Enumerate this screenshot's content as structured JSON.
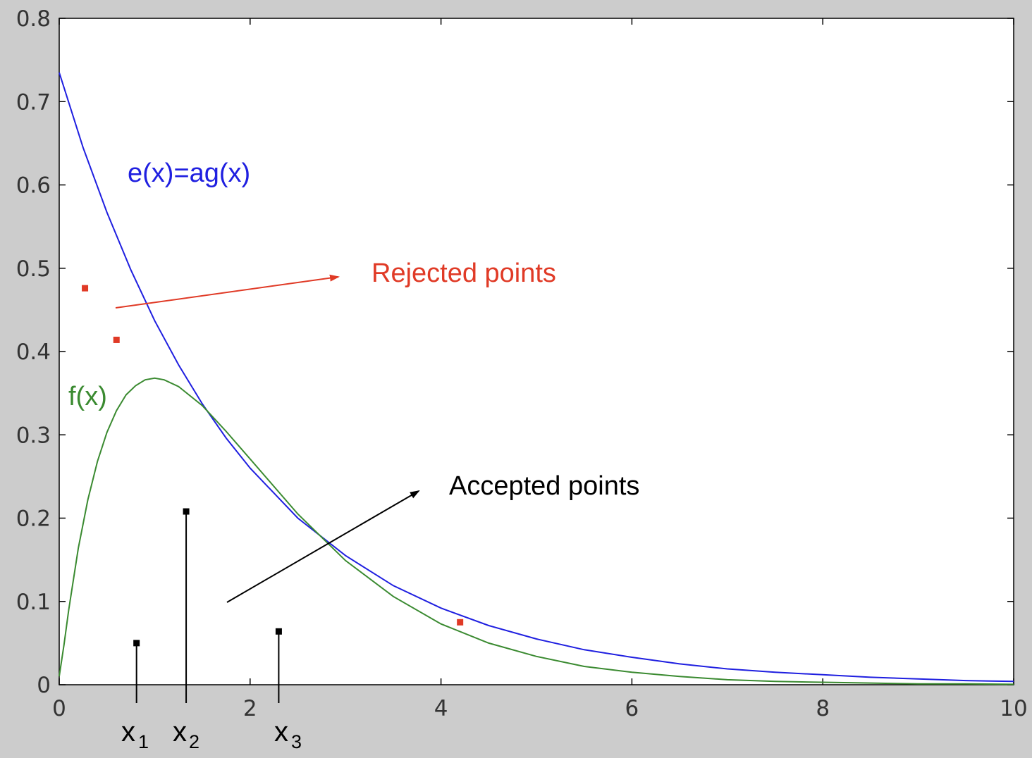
{
  "chart_data": {
    "type": "line",
    "xlim": [
      0,
      10
    ],
    "ylim": [
      0,
      0.8
    ],
    "xticks": [
      0,
      2,
      4,
      6,
      8,
      10
    ],
    "yticks": [
      0,
      0.1,
      0.2,
      0.3,
      0.4,
      0.5,
      0.6,
      0.7,
      0.8
    ],
    "grid": false,
    "series": [
      {
        "name": "e(x)=ag(x)",
        "color": "#1f1fe0",
        "x": [
          0,
          0.25,
          0.5,
          0.75,
          1,
          1.25,
          1.5,
          1.75,
          2,
          2.5,
          3,
          3.5,
          4,
          4.5,
          5,
          5.5,
          6,
          6.5,
          7,
          7.5,
          8,
          8.5,
          9,
          9.5,
          10
        ],
        "y": [
          0.735,
          0.645,
          0.567,
          0.498,
          0.437,
          0.384,
          0.337,
          0.296,
          0.26,
          0.2,
          0.155,
          0.119,
          0.092,
          0.071,
          0.055,
          0.042,
          0.033,
          0.025,
          0.019,
          0.015,
          0.012,
          0.009,
          0.007,
          0.005,
          0.004
        ]
      },
      {
        "name": "f(x)",
        "color": "#3a8a30",
        "x": [
          0,
          0.05,
          0.1,
          0.2,
          0.3,
          0.4,
          0.5,
          0.6,
          0.7,
          0.8,
          0.9,
          1,
          1.1,
          1.25,
          1.5,
          1.75,
          2,
          2.5,
          3,
          3.5,
          4,
          4.5,
          5,
          5.5,
          6,
          6.5,
          7,
          7.5,
          8,
          8.5,
          9,
          9.5,
          10
        ],
        "y": [
          0.01,
          0.048,
          0.09,
          0.164,
          0.222,
          0.268,
          0.303,
          0.329,
          0.348,
          0.359,
          0.366,
          0.368,
          0.366,
          0.358,
          0.335,
          0.304,
          0.271,
          0.205,
          0.149,
          0.106,
          0.073,
          0.05,
          0.034,
          0.022,
          0.015,
          0.01,
          0.006,
          0.004,
          0.003,
          0.002,
          0.001,
          0.001,
          0.0005
        ]
      }
    ],
    "rejected_points": [
      {
        "x": 0.27,
        "y": 0.476
      },
      {
        "x": 0.6,
        "y": 0.414
      },
      {
        "x": 4.2,
        "y": 0.075
      }
    ],
    "accepted_points": [
      {
        "x": 0.81,
        "y": 0.05
      },
      {
        "x": 1.33,
        "y": 0.208
      },
      {
        "x": 2.3,
        "y": 0.064
      }
    ],
    "annotations": {
      "e_label": "e(x)=ag(x)",
      "f_label": "f(x)",
      "rejected_label": "Rejected points",
      "accepted_label": "Accepted points",
      "x_markers": [
        {
          "symbol": "x",
          "sub": "1"
        },
        {
          "symbol": "x",
          "sub": "2"
        },
        {
          "symbol": "x",
          "sub": "3"
        }
      ]
    },
    "colors": {
      "e_curve": "#1f1fe0",
      "f_curve": "#3a8a30",
      "rejected": "#e03a26",
      "accepted": "#000000"
    }
  }
}
